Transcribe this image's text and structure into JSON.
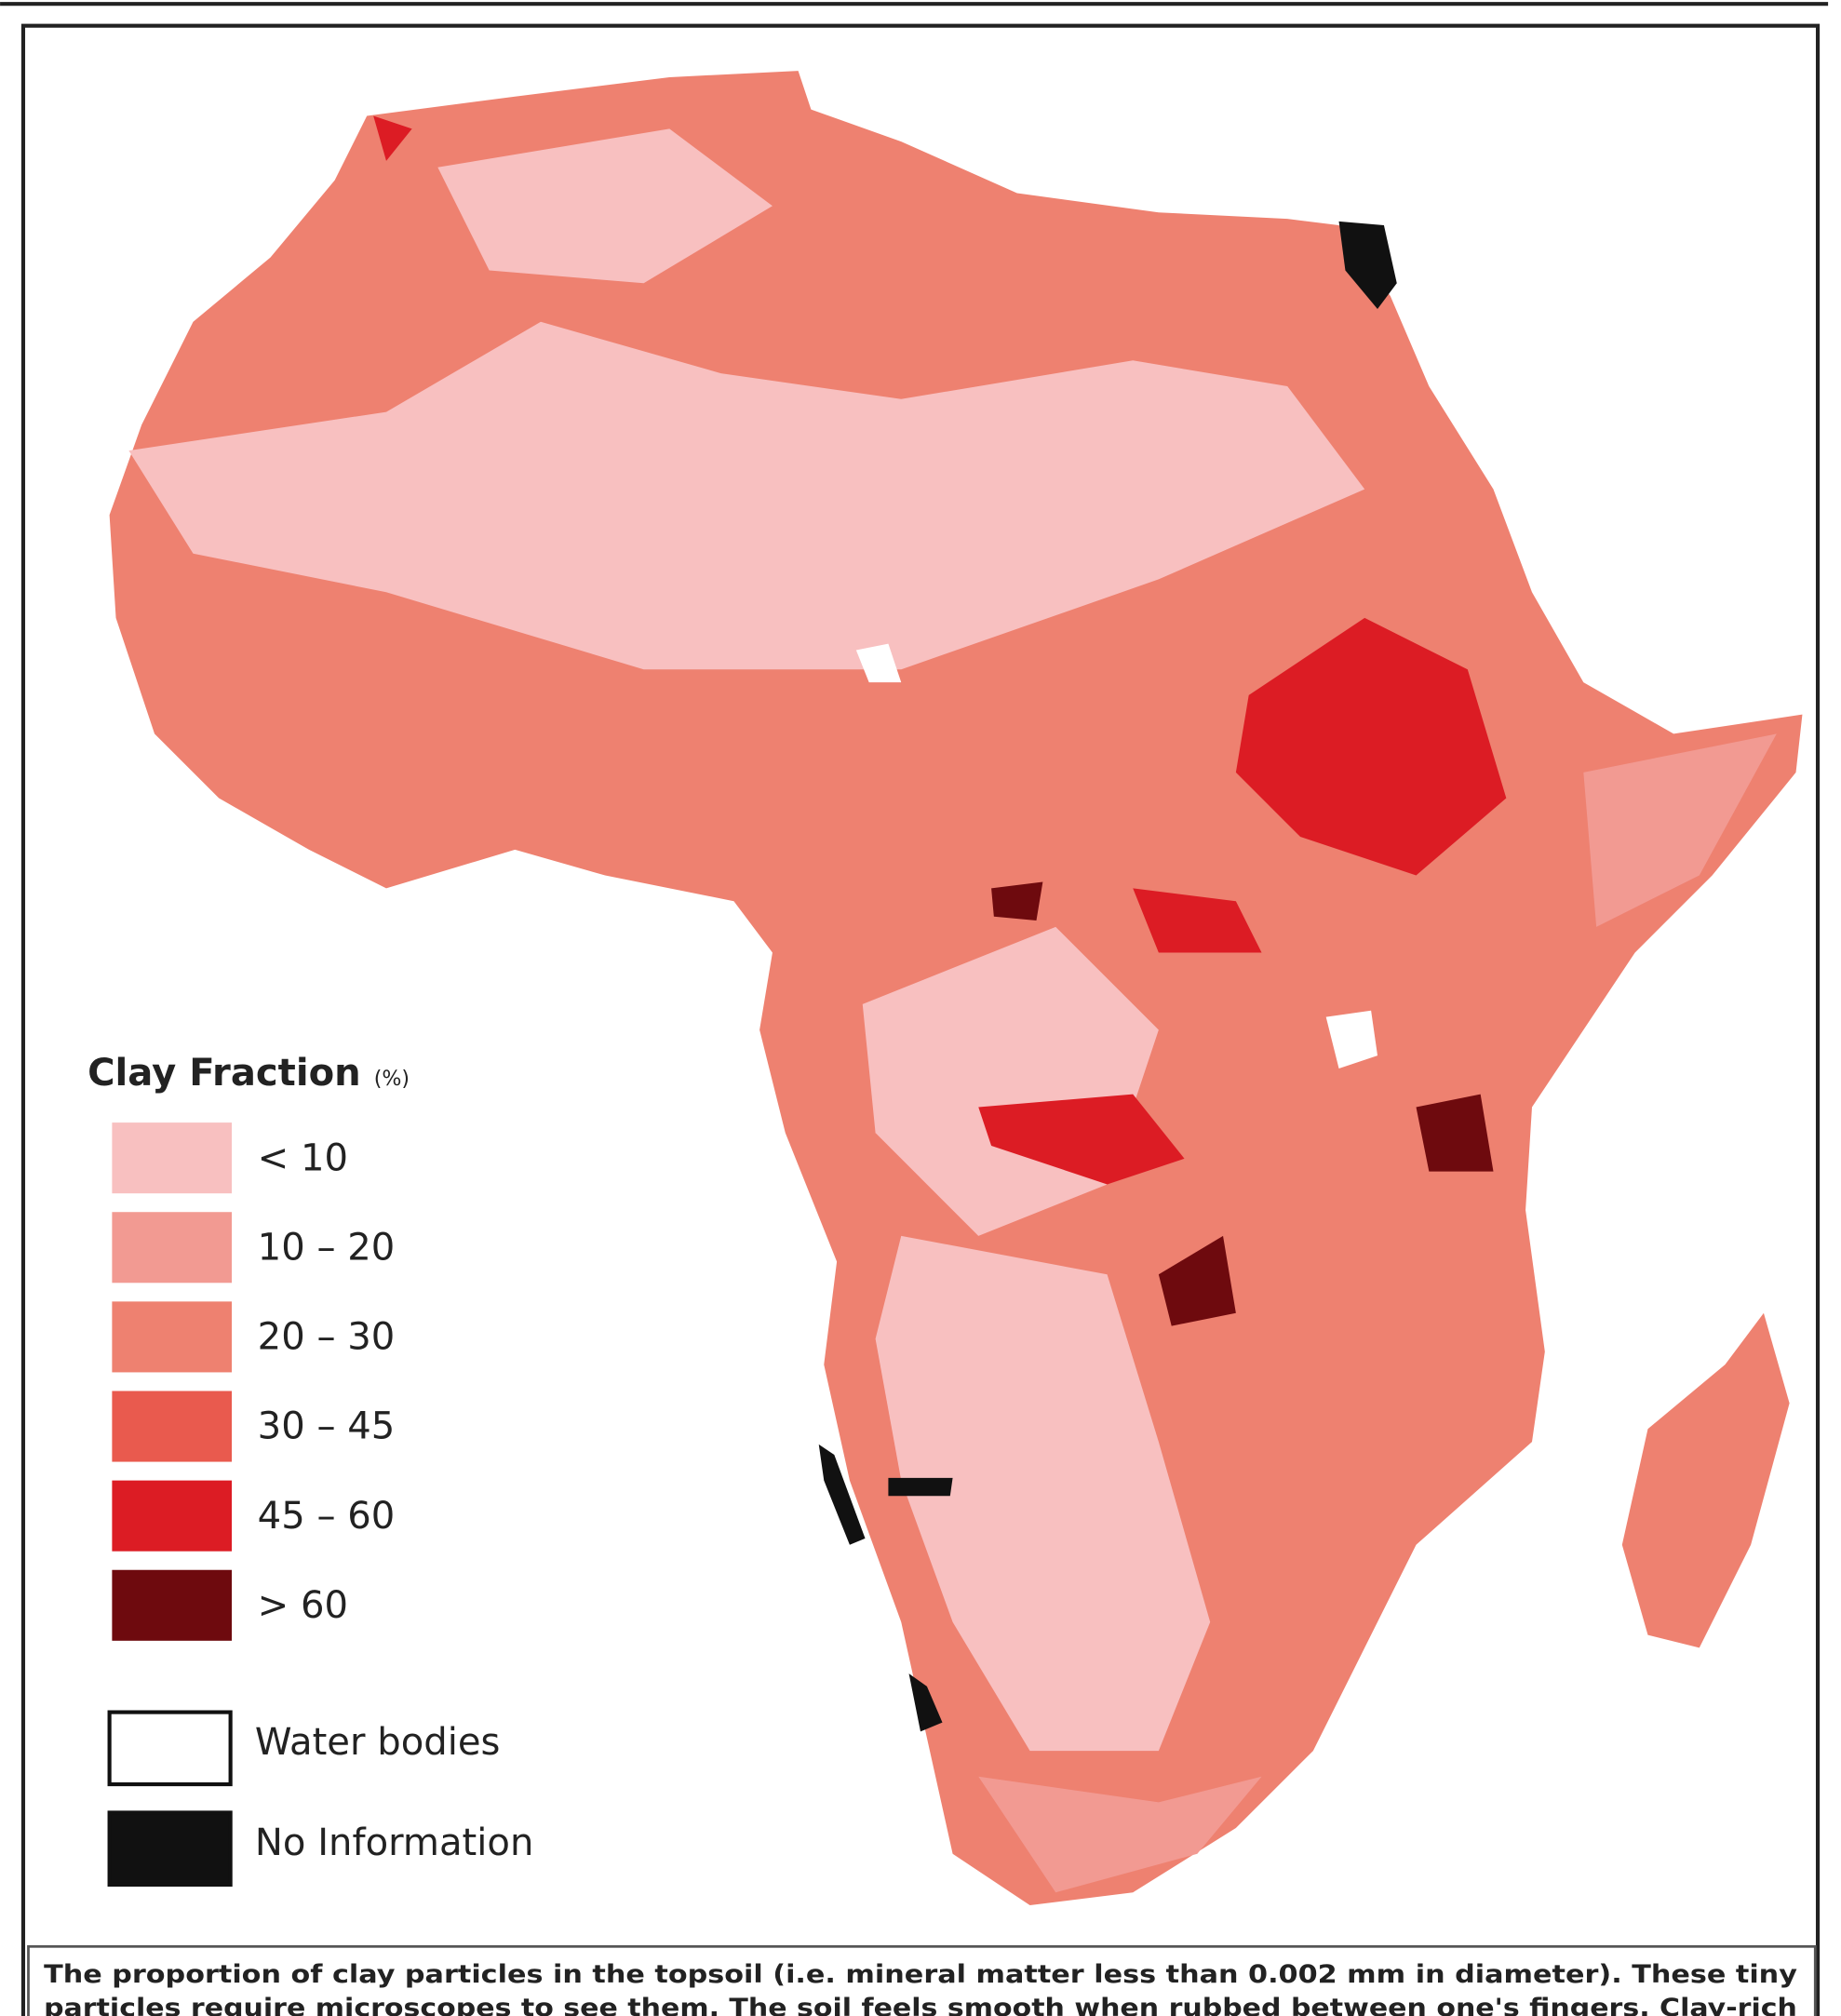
{
  "legend": {
    "title": "Clay Fraction",
    "unit": "(%)",
    "classes": [
      {
        "label": "< 10",
        "color": "#f8c0c0"
      },
      {
        "label": "10 – 20",
        "color": "#f29a92"
      },
      {
        "label": "20 – 30",
        "color": "#ee8170"
      },
      {
        "label": "30 – 45",
        "color": "#e95a4e"
      },
      {
        "label": "45 – 60",
        "color": "#dc1c24"
      },
      {
        "label": "> 60",
        "color": "#6e0a0e"
      }
    ],
    "extras": [
      {
        "label": "Water bodies",
        "color": "#ffffff"
      },
      {
        "label": "No Information",
        "color": "#111111"
      }
    ]
  },
  "caption": {
    "lines": [
      "The proportion of clay particles in the topsoil (i.e. mineral matter less than 0.002 mm in diameter). These tiny",
      "particles require microscopes to see them. The soil feels smooth when rubbed between one's fingers. Clay-rich"
    ]
  }
}
